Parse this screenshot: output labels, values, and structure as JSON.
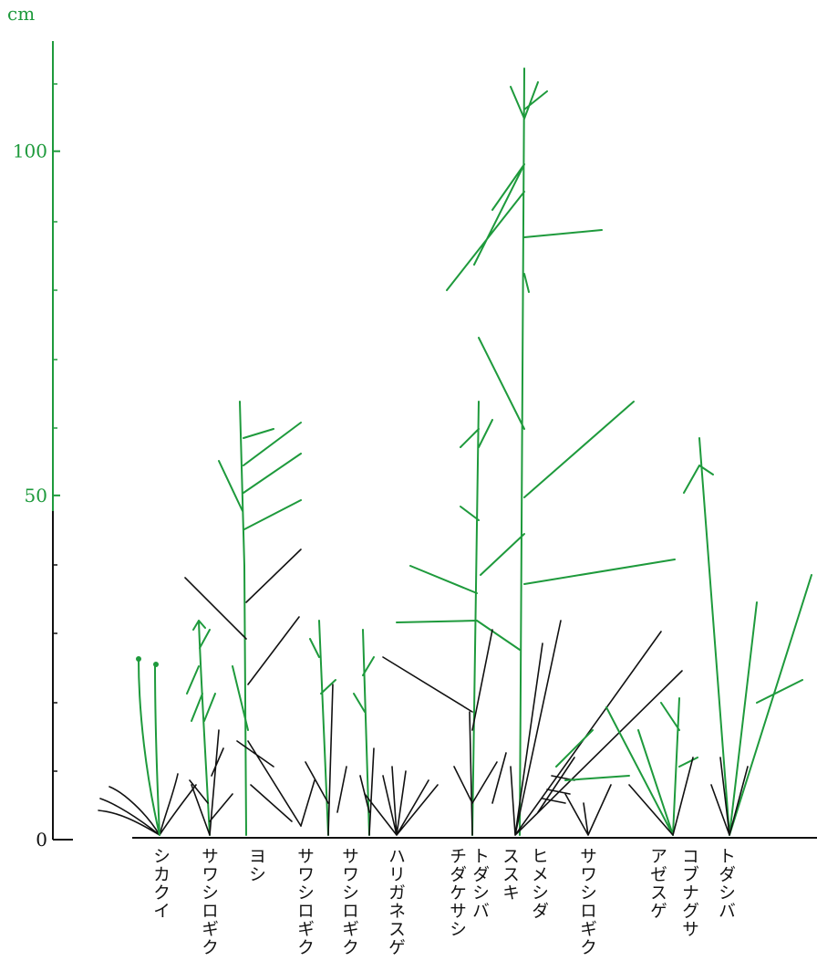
{
  "axis": {
    "unit": "cm",
    "range": [
      0,
      116
    ],
    "ticks": [
      0,
      50,
      100
    ]
  },
  "labels": [
    "シカクイ",
    "サワシロギク",
    "ヨシ",
    "サワシロギク",
    "サワシロギク",
    "ハリガネスゲ",
    "チダケサシ",
    "トダシバ",
    "ススキ",
    "ヒメシダ",
    "サワシロギク",
    "アゼスゲ",
    "コブナグサ",
    "トダシバ"
  ]
}
